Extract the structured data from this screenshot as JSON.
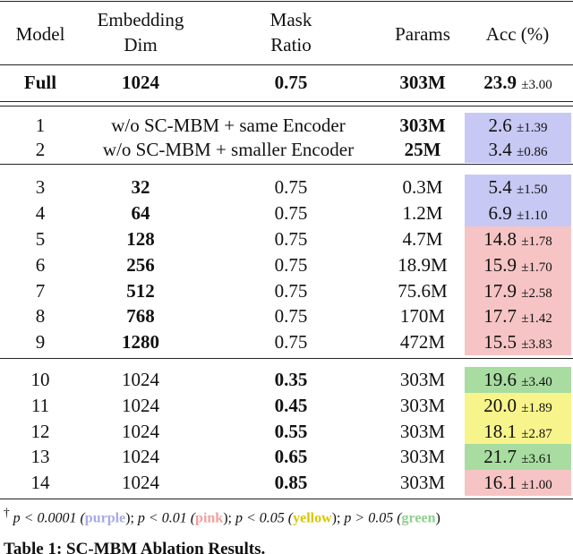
{
  "table": {
    "header": {
      "model": "Model",
      "dim": [
        "Embedding",
        "Dim"
      ],
      "mask": [
        "Mask",
        "Ratio"
      ],
      "params": "Params",
      "acc": "Acc (%)"
    },
    "full": {
      "model": "Full",
      "dim": "1024",
      "mask": "0.75",
      "params": "303M",
      "acc": "23.9",
      "std": "±3.00"
    },
    "groups": [
      {
        "bold": "params",
        "rows": [
          {
            "model": "1",
            "config": "w/o SC-MBM + same Encoder",
            "params": "303M",
            "acc": "2.6",
            "std": "±1.39",
            "color": "#c8c8f4"
          },
          {
            "model": "2",
            "config": "w/o SC-MBM + smaller Encoder",
            "params": "25M",
            "acc": "3.4",
            "std": "±0.86",
            "color": "#c8c8f4"
          }
        ]
      },
      {
        "bold": "dim",
        "rows": [
          {
            "model": "3",
            "dim": "32",
            "mask": "0.75",
            "params": "0.3M",
            "acc": "5.4",
            "std": "±1.50",
            "color": "#c8c8f4"
          },
          {
            "model": "4",
            "dim": "64",
            "mask": "0.75",
            "params": "1.2M",
            "acc": "6.9",
            "std": "±1.10",
            "color": "#c8c8f4"
          },
          {
            "model": "5",
            "dim": "128",
            "mask": "0.75",
            "params": "4.7M",
            "acc": "14.8",
            "std": "±1.78",
            "color": "#f6c4c4"
          },
          {
            "model": "6",
            "dim": "256",
            "mask": "0.75",
            "params": "18.9M",
            "acc": "15.9",
            "std": "±1.70",
            "color": "#f6c4c4"
          },
          {
            "model": "7",
            "dim": "512",
            "mask": "0.75",
            "params": "75.6M",
            "acc": "17.9",
            "std": "±2.58",
            "color": "#f6c4c4"
          },
          {
            "model": "8",
            "dim": "768",
            "mask": "0.75",
            "params": "170M",
            "acc": "17.7",
            "std": "±1.42",
            "color": "#f6c4c4"
          },
          {
            "model": "9",
            "dim": "1280",
            "mask": "0.75",
            "params": "472M",
            "acc": "15.5",
            "std": "±3.83",
            "color": "#f6c4c4"
          }
        ]
      },
      {
        "bold": "mask",
        "rows": [
          {
            "model": "10",
            "dim": "1024",
            "mask": "0.35",
            "params": "303M",
            "acc": "19.6",
            "std": "±3.40",
            "color": "#a8dca0"
          },
          {
            "model": "11",
            "dim": "1024",
            "mask": "0.45",
            "params": "303M",
            "acc": "20.0",
            "std": "±1.89",
            "color": "#f8f48c"
          },
          {
            "model": "12",
            "dim": "1024",
            "mask": "0.55",
            "params": "303M",
            "acc": "18.1",
            "std": "±2.87",
            "color": "#f8f48c"
          },
          {
            "model": "13",
            "dim": "1024",
            "mask": "0.65",
            "params": "303M",
            "acc": "21.7",
            "std": "±3.61",
            "color": "#a8dca0"
          },
          {
            "model": "14",
            "dim": "1024",
            "mask": "0.85",
            "params": "303M",
            "acc": "16.1",
            "std": "±1.00",
            "color": "#f6c4c4"
          }
        ]
      }
    ],
    "footnote": {
      "mark": "†",
      "items": [
        {
          "condition": "p < 0.0001 (",
          "word": "purple",
          "end": ");",
          "color": "#a9a9e8"
        },
        {
          "condition": "p < 0.01 (",
          "word": "pink",
          "end": ");",
          "color": "#f0a0a0"
        },
        {
          "condition": "p < 0.05 (",
          "word": "yellow",
          "end": ");",
          "color": "#d8c800"
        },
        {
          "condition": "p > 0.05 (",
          "word": "green",
          "end": ")",
          "color": "#8cd08c"
        }
      ]
    },
    "caption": "Table 1: SC-MBM Ablation Results."
  }
}
